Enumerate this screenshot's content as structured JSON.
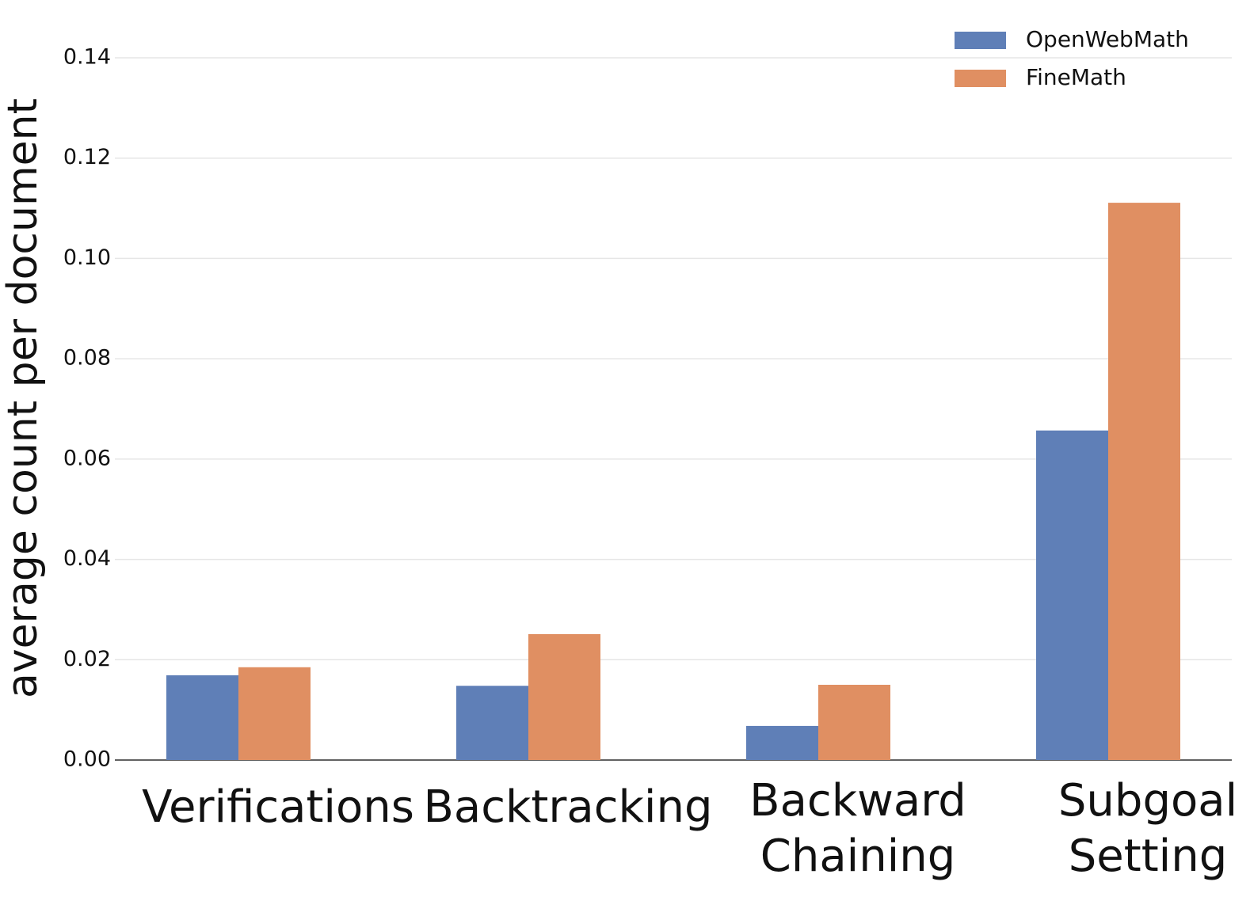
{
  "chart_data": {
    "type": "bar",
    "y_label": "average count per document",
    "categories": [
      "Verifications",
      "Backtracking",
      "Backward Chaining",
      "Subgoal Setting"
    ],
    "series": [
      {
        "name": "OpenWebMath",
        "color": "#5f7fb7",
        "values": [
          0.0169,
          0.0148,
          0.0068,
          0.0657
        ]
      },
      {
        "name": "FineMath",
        "color": "#e08f62",
        "values": [
          0.0185,
          0.0251,
          0.015,
          0.1111
        ]
      }
    ],
    "ylim": [
      0,
      0.14
    ],
    "yticks": [
      {
        "value": 0,
        "label": "0.00"
      },
      0.02,
      0.04,
      0.06,
      0.08,
      {
        "value": 0.1,
        "label": "0.10"
      },
      0.12,
      0.14
    ],
    "grid": true,
    "legend": "upper right"
  }
}
